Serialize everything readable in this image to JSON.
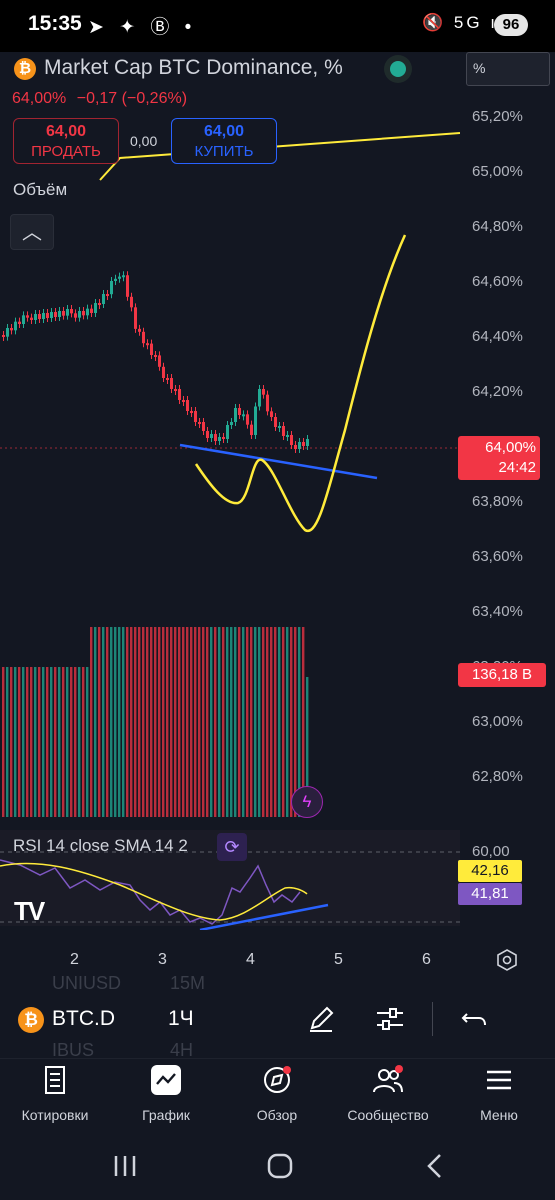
{
  "status_bar": {
    "time": "15:35",
    "left_icons": "➤ ✦ Ⓑ •",
    "right_icons": "🔇 5G ıll",
    "battery": "96"
  },
  "header": {
    "title": "Market Cap BTC Dominance, %",
    "price": "64,00%",
    "change": "−0,17 (−0,26%)",
    "scale_button": "%"
  },
  "trade": {
    "sell_price": "64,00",
    "sell_label": "ПРОДАТЬ",
    "spread": "0,00",
    "buy_price": "64,00",
    "buy_label": "КУПИТЬ"
  },
  "volume_label": "Объём",
  "price_axis": [
    "65,20%",
    "65,00%",
    "64,80%",
    "64,60%",
    "64,40%",
    "64,20%",
    "63,80%",
    "63,60%",
    "63,40%",
    "63,20%",
    "63,00%",
    "62,80%"
  ],
  "price_badge": {
    "value": "64,00%",
    "timer": "24:42"
  },
  "volume_badge": "136,18 B",
  "rsi": {
    "label": "RSI 14 close SMA 14 2",
    "level": "60,00",
    "rsi_value": "42,16",
    "sma_value": "41,81"
  },
  "time_axis": [
    "2",
    "3",
    "4",
    "5",
    "6"
  ],
  "toolbar": {
    "symbol": "BTC.D",
    "interval": "1Ч",
    "ghost_symbol_above": "UNIUSD",
    "ghost_interval_above": "15M",
    "ghost_symbol_below": "IBUS",
    "ghost_interval_below": "4H"
  },
  "nav": [
    {
      "label": "Котировки",
      "icon": "watchlist-icon"
    },
    {
      "label": "График",
      "icon": "chart-icon"
    },
    {
      "label": "Обзор",
      "icon": "explore-icon"
    },
    {
      "label": "Сообщество",
      "icon": "community-icon"
    },
    {
      "label": "Меню",
      "icon": "menu-icon"
    }
  ],
  "colors": {
    "background": "#131722",
    "up": "#22ab94",
    "down": "#f23645",
    "accent_blue": "#2962ff",
    "annotation_yellow": "#ffeb3b",
    "rsi_purple": "#7e57c2"
  }
}
